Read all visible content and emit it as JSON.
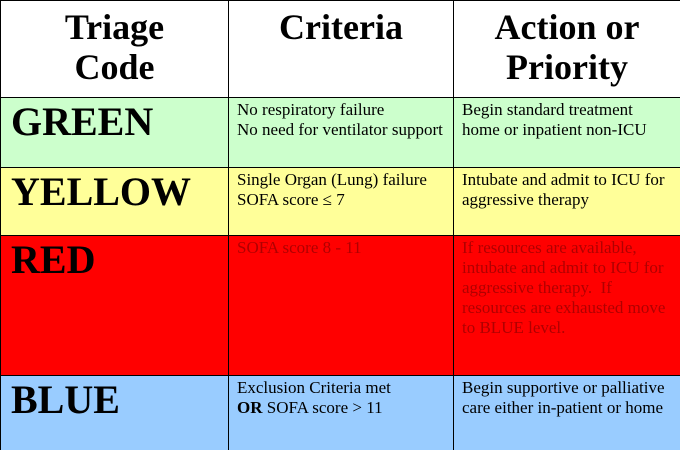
{
  "table": {
    "header": [
      [
        "Triage",
        "Code"
      ],
      [
        "Criteria"
      ],
      [
        "Action or",
        "Priority"
      ]
    ],
    "rows": [
      {
        "code": "GREEN",
        "color": "#ccffcc",
        "text_color": "#000000",
        "criteria": [
          "No respiratory failure",
          "No need for ventilator support"
        ],
        "action": "Begin standard treatment home or inpatient non-ICU"
      },
      {
        "code": "YELLOW",
        "color": "#ffff99",
        "text_color": "#000000",
        "criteria": [
          "Single Organ (Lung) failure",
          "SOFA score ≤ 7"
        ],
        "action": "Intubate and admit to ICU for aggressive therapy"
      },
      {
        "code": "RED",
        "color": "#ff0000",
        "text_color": "#b00000",
        "criteria": [
          "SOFA score 8 - 11"
        ],
        "action": "If resources are available, intubate and admit to ICU for aggressive therapy.  If resources are exhausted move to BLUE level."
      },
      {
        "code": "BLUE",
        "color": "#99ccff",
        "text_color": "#000000",
        "criteria": [
          "Exclusion Criteria met",
          {
            "bold": "OR",
            "text": "SOFA score > 11"
          }
        ],
        "action": "Begin supportive or palliative care either in-patient or home"
      }
    ]
  }
}
